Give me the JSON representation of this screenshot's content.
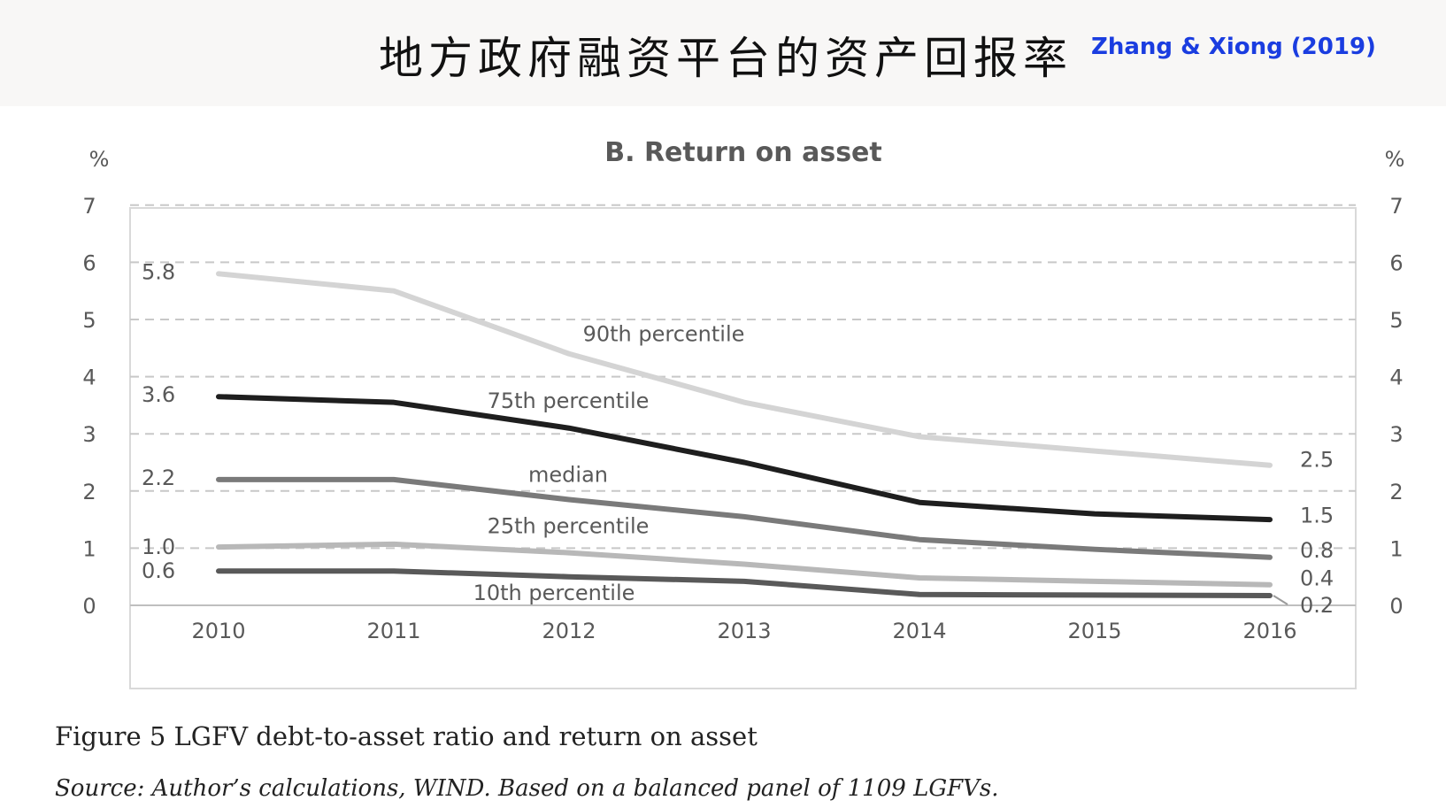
{
  "slide": {
    "title": "地方政府融资平台的资产回报率",
    "citation": "Zhang & Xiong (2019)"
  },
  "figure": {
    "caption": "Figure 5 LGFV debt-to-asset ratio and return on asset",
    "source": "Source: Author’s calculations, WIND. Based on a balanced panel of 1109 LGFVs."
  },
  "colors": {
    "p90": "#d4d4d4",
    "p75": "#1e1e1e",
    "median": "#7a7a7a",
    "p25": "#b8b8b8",
    "p10": "#595959",
    "grid": "#c8c8c8",
    "axis_text": "#595959",
    "frame": "#d9d9d9"
  },
  "chart_data": {
    "type": "line",
    "title": "B. Return on asset",
    "y_unit_left": "%",
    "y_unit_right": "%",
    "x": [
      "2010",
      "2011",
      "2012",
      "2013",
      "2014",
      "2015",
      "2016"
    ],
    "ylim": [
      0,
      7
    ],
    "yticks": [
      "0",
      "1",
      "2",
      "3",
      "4",
      "5",
      "6",
      "7"
    ],
    "grid": "horizontal dashed",
    "series": [
      {
        "name": "90th percentile",
        "key": "p90",
        "values": [
          5.8,
          5.5,
          4.4,
          3.55,
          2.95,
          2.7,
          2.45
        ],
        "start_label": "5.8",
        "end_label": "2.5"
      },
      {
        "name": "75th percentile",
        "key": "p75",
        "values": [
          3.65,
          3.55,
          3.1,
          2.5,
          1.8,
          1.6,
          1.5
        ],
        "start_label": "3.6",
        "end_label": "1.5"
      },
      {
        "name": "median",
        "key": "median",
        "values": [
          2.2,
          2.2,
          1.85,
          1.55,
          1.15,
          0.98,
          0.84
        ],
        "start_label": "2.2",
        "end_label": "0.8"
      },
      {
        "name": "25th percentile",
        "key": "p25",
        "values": [
          1.02,
          1.07,
          0.92,
          0.72,
          0.48,
          0.42,
          0.36
        ],
        "start_label": "1.0",
        "end_label": "0.4"
      },
      {
        "name": "10th percentile",
        "key": "p10",
        "values": [
          0.6,
          0.6,
          0.5,
          0.42,
          0.19,
          0.18,
          0.17
        ],
        "start_label": "0.6",
        "end_label": "0.2"
      }
    ]
  }
}
